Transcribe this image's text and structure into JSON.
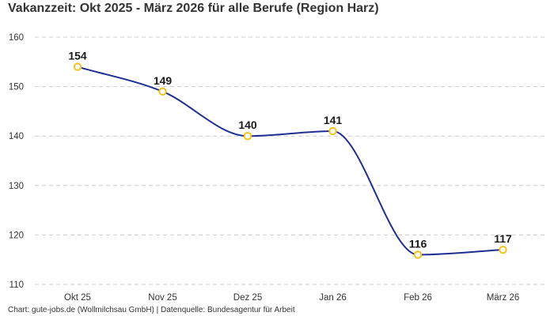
{
  "title": "Vakanzzeit: Okt 2025 - März 2026 für alle Berufe (Region Harz)",
  "source": "Chart: gute-jobs.de (Wollmilchsau GmbH) | Datenquelle: Bundesagentur für Arbeit",
  "colors": {
    "line": "#1f2f8f",
    "marker": "#f2c21b",
    "grid": "#cccccc"
  },
  "chart_data": {
    "type": "line",
    "categories": [
      "Okt 25",
      "Nov 25",
      "Dez 25",
      "Jan 26",
      "Feb 26",
      "März 26"
    ],
    "series": [
      {
        "values": [
          154,
          149,
          140,
          141,
          116,
          117
        ]
      }
    ],
    "data_labels": [
      "154",
      "149",
      "140",
      "141",
      "116",
      "117"
    ],
    "yticks": [
      110,
      120,
      130,
      140,
      150,
      160
    ],
    "ylim": [
      110,
      160
    ],
    "grid": true,
    "grid_style": "dashed-horizontal",
    "line_style": "smooth",
    "marker": "open-circle",
    "legend": "none"
  }
}
